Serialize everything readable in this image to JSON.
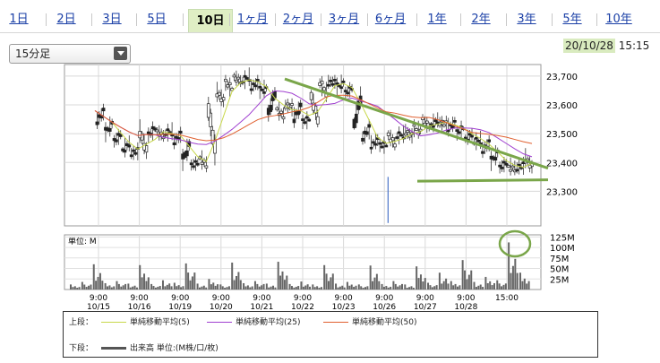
{
  "tabs": [
    "1日",
    "2日",
    "3日",
    "5日",
    "10日",
    "1ヶ月",
    "2ヶ月",
    "3ヶ月",
    "6ヶ月",
    "1年",
    "2年",
    "3年",
    "5年",
    "10年"
  ],
  "active_tab": "10日",
  "interval_select": "15分足",
  "timestamp": {
    "date": "20/10/28",
    "time": "15:15"
  },
  "legend": {
    "upper_label": "上段：",
    "lower_label": "下段：",
    "ma5": "単純移動平均(5)",
    "ma25": "単純移動平均(25)",
    "ma50": "単純移動平均(50)",
    "volume": "出来高 単位:(M株/口/枚)"
  },
  "colors": {
    "ma5": "#c8d84a",
    "ma25": "#a040d0",
    "ma50": "#e06030",
    "candle": "#333333",
    "trend": "#7aa64a",
    "highlight": "#d9ebbf"
  },
  "chart_data": {
    "type": "candlestick",
    "price_ticks": [
      "23,700",
      "23,600",
      "23,500",
      "23,400",
      "23,300"
    ],
    "price_range": [
      23180,
      23740
    ],
    "x_tick_times": [
      "9:00",
      "9:00",
      "9:00",
      "9:00",
      "9:00",
      "9:00",
      "9:00",
      "9:00",
      "9:00",
      "9:00",
      "15:00"
    ],
    "x_tick_dates": [
      "10/15",
      "10/16",
      "10/19",
      "10/20",
      "10/21",
      "10/22",
      "10/23",
      "10/26",
      "10/27",
      "10/28",
      ""
    ],
    "volume_unit_label": "単位: M",
    "volume_ticks": [
      "125M",
      "100M",
      "75M",
      "50M",
      "25M"
    ],
    "price_path": [
      23580,
      23540,
      23500,
      23470,
      23440,
      23430,
      23520,
      23490,
      23510,
      23500,
      23470,
      23400,
      23390,
      23420,
      23610,
      23650,
      23680,
      23700,
      23680,
      23660,
      23650,
      23560,
      23590,
      23600,
      23550,
      23540,
      23640,
      23680,
      23680,
      23660,
      23640,
      23520,
      23480,
      23460,
      23460,
      23500,
      23490,
      23510,
      23520,
      23550,
      23530,
      23540,
      23520,
      23500,
      23480,
      23470,
      23440,
      23400,
      23380,
      23390,
      23380,
      23420
    ],
    "volume_path": [
      12,
      18,
      60,
      15,
      20,
      14,
      58,
      13,
      22,
      16,
      62,
      14,
      25,
      12,
      64,
      15,
      20,
      14,
      66,
      13,
      19,
      12,
      58,
      14,
      18,
      12,
      57,
      13,
      20,
      12,
      55,
      16,
      40,
      20,
      70,
      18,
      30,
      22,
      112,
      40
    ]
  }
}
